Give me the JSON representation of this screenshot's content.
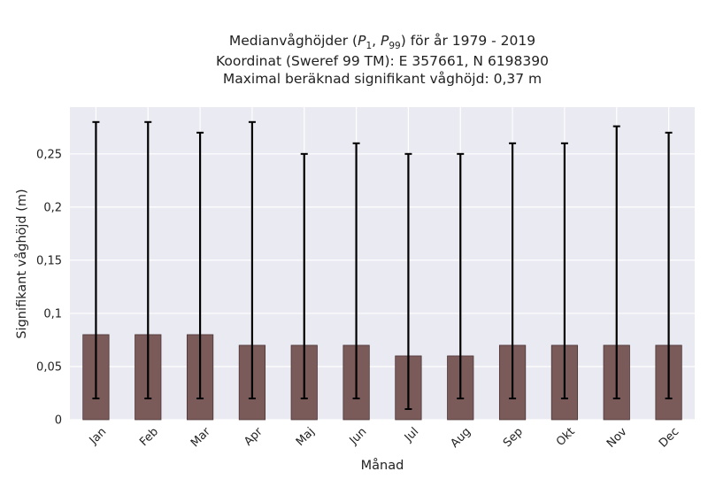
{
  "chart_data": {
    "type": "bar",
    "title_lines": [
      "Medianvåghöjder (P1, P99) för år 1979 - 2019",
      "Koordinat (Sweref 99 TM): E 357661, N 6198390",
      "Maximal beräknad signifikant våghöjd: 0,37 m"
    ],
    "title_math": {
      "prefix": "Medianvåghöjder (",
      "p1_base": "P",
      "p1_sub": "1",
      "sep": ", ",
      "p99_base": "P",
      "p99_sub": "99",
      "suffix": ") för år 1979 - 2019"
    },
    "xlabel": "Månad",
    "ylabel": "Signifikant våghöjd (m)",
    "categories": [
      "Jan",
      "Feb",
      "Mar",
      "Apr",
      "Maj",
      "Jun",
      "Jul",
      "Aug",
      "Sep",
      "Okt",
      "Nov",
      "Dec"
    ],
    "values": [
      0.08,
      0.08,
      0.08,
      0.07,
      0.07,
      0.07,
      0.06,
      0.06,
      0.07,
      0.07,
      0.07,
      0.07
    ],
    "error_low": [
      0.02,
      0.02,
      0.02,
      0.02,
      0.02,
      0.02,
      0.01,
      0.02,
      0.02,
      0.02,
      0.02,
      0.02
    ],
    "error_high": [
      0.28,
      0.28,
      0.27,
      0.28,
      0.25,
      0.26,
      0.25,
      0.25,
      0.26,
      0.26,
      0.276,
      0.27
    ],
    "yticks": [
      0,
      0.05,
      0.1,
      0.15,
      0.2,
      0.25
    ],
    "ytick_labels": [
      "0",
      "0,05",
      "0,1",
      "0,15",
      "0,2",
      "0,25"
    ],
    "ylim": [
      0,
      0.294
    ],
    "grid": true,
    "colors": {
      "bar": "#7b5a5a",
      "bar_edge": "#4a3434",
      "error": "#000000",
      "plot_bg": "#eaeaf2",
      "grid": "#ffffff"
    }
  }
}
